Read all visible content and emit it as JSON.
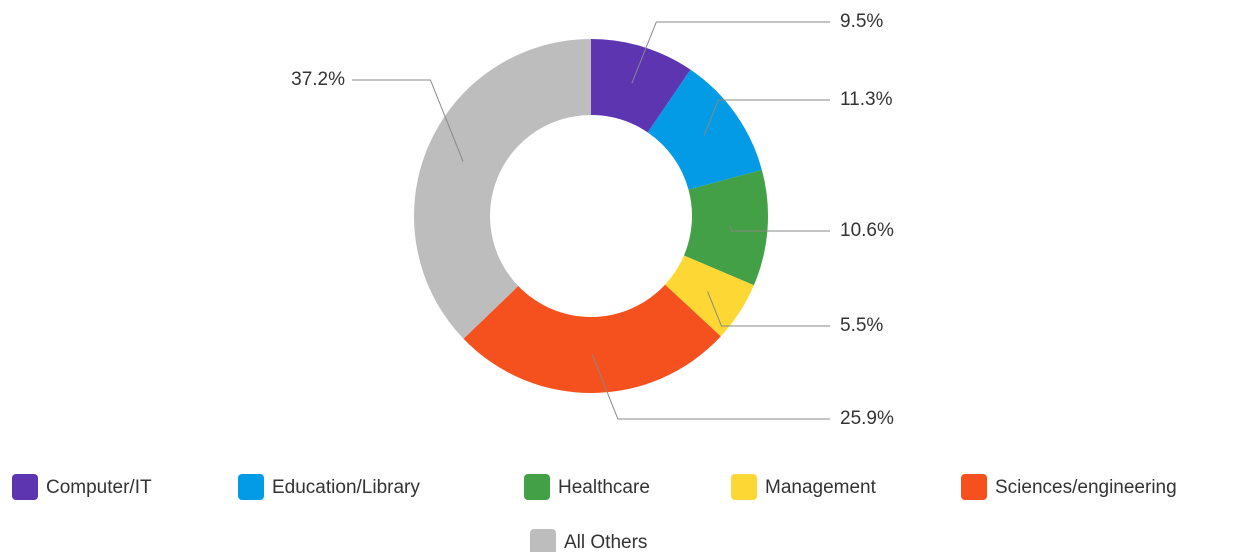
{
  "chart_data": {
    "type": "donut",
    "categories": [
      "Computer/IT",
      "Education/Library",
      "Healthcare",
      "Management",
      "Sciences/engineering",
      "All Others"
    ],
    "values": [
      9.5,
      11.3,
      10.6,
      5.5,
      25.9,
      37.2
    ],
    "value_labels": [
      "9.5%",
      "11.3%",
      "10.6%",
      "5.5%",
      "25.9%",
      "37.2%"
    ],
    "colors": [
      "#5e35b1",
      "#039be5",
      "#43a047",
      "#fdd835",
      "#f4511e",
      "#bdbdbd"
    ],
    "legend": "bottom"
  }
}
